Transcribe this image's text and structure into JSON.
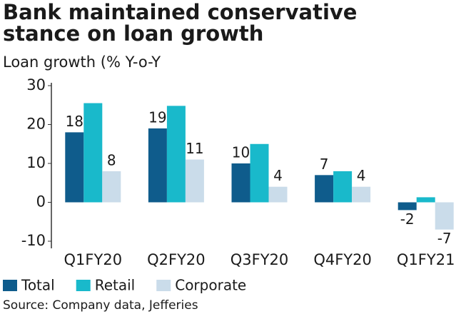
{
  "chart_data": {
    "type": "bar",
    "title": [
      "Bank maintained conservative",
      "stance on loan growth"
    ],
    "subtitle": "Loan growth (% Y-o-Y",
    "source": "Source: Company data, Jefferies",
    "categories": [
      "Q1FY20",
      "Q2FY20",
      "Q3FY20",
      "Q4FY20",
      "Q1FY21"
    ],
    "series": [
      {
        "name": "Total",
        "color": "#0f5c8c",
        "values": [
          18,
          19,
          10,
          7,
          -2
        ],
        "data_labels": true
      },
      {
        "name": "Retail",
        "color": "#19b9cb",
        "values": [
          25.5,
          24.8,
          15,
          8,
          1.3
        ],
        "data_labels": false
      },
      {
        "name": "Corporate",
        "color": "#cadcea",
        "values": [
          8,
          11,
          4,
          4,
          -7
        ],
        "data_labels": true
      }
    ],
    "ylim": [
      -10,
      30
    ],
    "yticks": [
      -10,
      0,
      10,
      20,
      30
    ],
    "grid": false
  }
}
